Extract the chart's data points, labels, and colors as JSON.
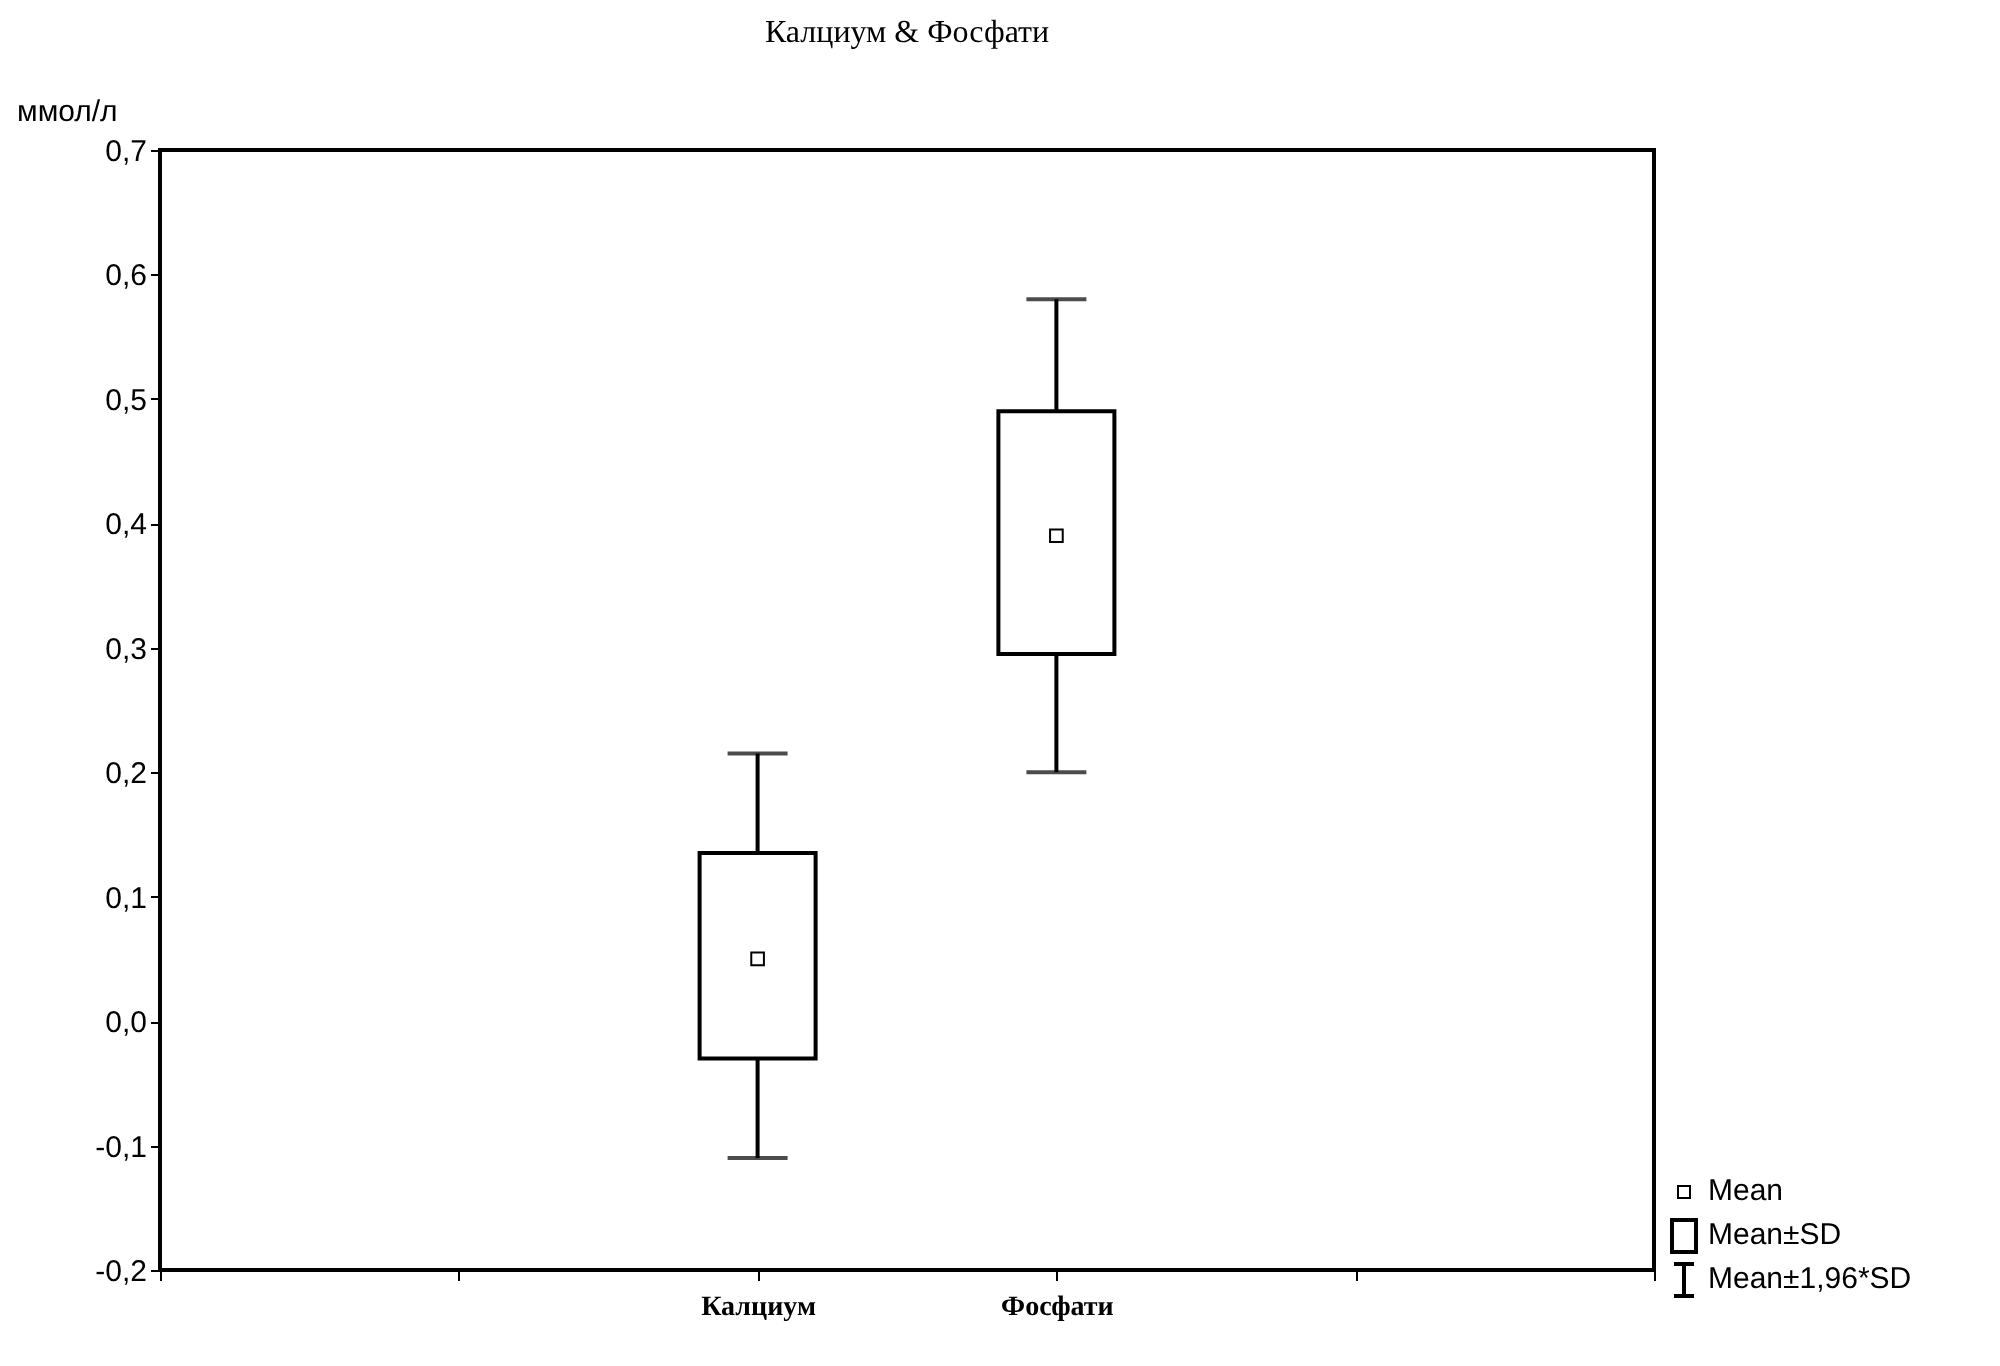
{
  "chart_data": {
    "type": "box",
    "title": "Калциум & Фосфати",
    "ylabel": "ммол/л",
    "categories": [
      null,
      null,
      "Калциум",
      "Фосфати",
      null,
      null
    ],
    "boxes": [
      null,
      null,
      {
        "low": -0.11,
        "q1": -0.03,
        "median": 0.05,
        "q3": 0.135,
        "high": 0.215
      },
      {
        "low": 0.2,
        "q1": 0.295,
        "median": 0.39,
        "q3": 0.49,
        "high": 0.58
      },
      null,
      null
    ],
    "color": "#000000",
    "ylim": [
      -0.2,
      0.7
    ],
    "yticks": [
      {
        "value": -0.2,
        "label": "-0,2"
      },
      {
        "value": -0.1,
        "label": "-0,1"
      },
      {
        "value": 0,
        "label": "0,0"
      },
      {
        "value": 0.1,
        "label": "0,1"
      },
      {
        "value": 0.2,
        "label": "0,2"
      },
      {
        "value": 0.3,
        "label": "0,3"
      },
      {
        "value": 0.4,
        "label": "0,4"
      },
      {
        "value": 0.5,
        "label": "0,5"
      },
      {
        "value": 0.6,
        "label": "0,6"
      },
      {
        "value": 0.7,
        "label": "0,7"
      }
    ],
    "grid": false,
    "marker": "square",
    "annotations": [
      "Mean",
      "Mean±SD",
      "Mean±1,96*SD"
    ]
  }
}
